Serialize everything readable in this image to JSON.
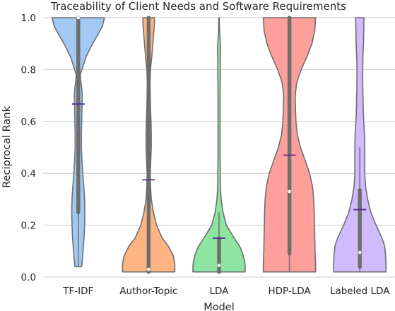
{
  "chart_data": {
    "type": "violin",
    "title": "Traceability of Client Needs and Software Requirements",
    "xlabel": "Model",
    "ylabel": "Reciprocal Rank",
    "ylim": [
      0,
      1.0
    ],
    "yticks": [
      "0.0",
      "0.2",
      "0.4",
      "0.6",
      "0.8",
      "1.0"
    ],
    "grid": true,
    "categories": [
      "TF-IDF",
      "Author-Topic",
      "LDA",
      "HDP-LDA",
      "Labeled LDA"
    ],
    "colors": [
      "#a1c9f4",
      "#ffb482",
      "#8de5a1",
      "#ff9f9b",
      "#d0bbff"
    ],
    "mean_marker_color": "#5b2c8f",
    "violins": [
      {
        "name": "TF-IDF",
        "data_min": 0.04,
        "data_max": 1.0,
        "q1": 0.25,
        "median": 1.0,
        "q3": 1.0,
        "whisker_low": 0.04,
        "whisker_high": 1.0,
        "mean": 0.667,
        "density": [
          [
            0.04,
            0.13
          ],
          [
            0.06,
            0.15
          ],
          [
            0.1,
            0.18
          ],
          [
            0.15,
            0.22
          ],
          [
            0.2,
            0.24
          ],
          [
            0.25,
            0.25
          ],
          [
            0.3,
            0.24
          ],
          [
            0.35,
            0.21
          ],
          [
            0.4,
            0.17
          ],
          [
            0.45,
            0.14
          ],
          [
            0.5,
            0.12
          ],
          [
            0.55,
            0.12
          ],
          [
            0.6,
            0.13
          ],
          [
            0.65,
            0.14
          ],
          [
            0.7,
            0.15
          ],
          [
            0.73,
            0.13
          ],
          [
            0.76,
            0.09
          ],
          [
            0.78,
            0.08
          ],
          [
            0.8,
            0.14
          ],
          [
            0.85,
            0.3
          ],
          [
            0.9,
            0.55
          ],
          [
            0.94,
            0.78
          ],
          [
            0.97,
            0.93
          ],
          [
            1.0,
            1.0
          ]
        ]
      },
      {
        "name": "Author-Topic",
        "data_min": 0.02,
        "data_max": 1.0,
        "q1": 0.02,
        "median": 0.03,
        "q3": 1.0,
        "whisker_low": 0.02,
        "whisker_high": 1.0,
        "mean": 0.375,
        "density": [
          [
            0.02,
            1.0
          ],
          [
            0.05,
            1.0
          ],
          [
            0.08,
            0.95
          ],
          [
            0.12,
            0.75
          ],
          [
            0.15,
            0.52
          ],
          [
            0.2,
            0.3
          ],
          [
            0.25,
            0.18
          ],
          [
            0.3,
            0.1
          ],
          [
            0.35,
            0.07
          ],
          [
            0.4,
            0.06
          ],
          [
            0.45,
            0.08
          ],
          [
            0.5,
            0.1
          ],
          [
            0.55,
            0.1
          ],
          [
            0.6,
            0.09
          ],
          [
            0.65,
            0.07
          ],
          [
            0.7,
            0.06
          ],
          [
            0.75,
            0.05
          ],
          [
            0.8,
            0.07
          ],
          [
            0.85,
            0.12
          ],
          [
            0.9,
            0.16
          ],
          [
            0.95,
            0.2
          ],
          [
            0.98,
            0.22
          ],
          [
            1.0,
            0.22
          ]
        ]
      },
      {
        "name": "LDA",
        "data_min": 0.02,
        "data_max": 1.0,
        "q1": 0.02,
        "median": 0.045,
        "q3": 0.15,
        "whisker_low": 0.02,
        "whisker_high": 0.25,
        "mean": 0.15,
        "density": [
          [
            0.02,
            1.0
          ],
          [
            0.04,
            1.0
          ],
          [
            0.06,
            0.98
          ],
          [
            0.08,
            0.93
          ],
          [
            0.1,
            0.87
          ],
          [
            0.12,
            0.78
          ],
          [
            0.15,
            0.58
          ],
          [
            0.18,
            0.4
          ],
          [
            0.2,
            0.28
          ],
          [
            0.25,
            0.15
          ],
          [
            0.3,
            0.08
          ],
          [
            0.35,
            0.05
          ],
          [
            0.4,
            0.05
          ],
          [
            0.45,
            0.04
          ],
          [
            0.5,
            0.04
          ],
          [
            0.6,
            0.04
          ],
          [
            0.7,
            0.04
          ],
          [
            0.8,
            0.05
          ],
          [
            0.85,
            0.05
          ],
          [
            0.88,
            0.06
          ],
          [
            0.9,
            0.05
          ],
          [
            0.95,
            0.02
          ],
          [
            1.0,
            0.01
          ]
        ]
      },
      {
        "name": "HDP-LDA",
        "data_min": 0.02,
        "data_max": 1.0,
        "q1": 0.09,
        "median": 0.33,
        "q3": 1.0,
        "whisker_low": 0.02,
        "whisker_high": 1.0,
        "mean": 0.47,
        "density": [
          [
            0.02,
            1.0
          ],
          [
            0.05,
            1.0
          ],
          [
            0.1,
            0.98
          ],
          [
            0.15,
            0.97
          ],
          [
            0.2,
            0.96
          ],
          [
            0.25,
            0.95
          ],
          [
            0.3,
            0.93
          ],
          [
            0.35,
            0.88
          ],
          [
            0.4,
            0.77
          ],
          [
            0.45,
            0.6
          ],
          [
            0.5,
            0.42
          ],
          [
            0.55,
            0.3
          ],
          [
            0.6,
            0.25
          ],
          [
            0.65,
            0.23
          ],
          [
            0.7,
            0.22
          ],
          [
            0.75,
            0.28
          ],
          [
            0.8,
            0.45
          ],
          [
            0.85,
            0.67
          ],
          [
            0.9,
            0.86
          ],
          [
            0.95,
            0.97
          ],
          [
            1.0,
            1.0
          ]
        ]
      },
      {
        "name": "Labeled LDA",
        "data_min": 0.02,
        "data_max": 1.0,
        "q1": 0.04,
        "median": 0.095,
        "q3": 0.335,
        "whisker_low": 0.02,
        "whisker_high": 0.5,
        "mean": 0.26,
        "density": [
          [
            0.02,
            1.0
          ],
          [
            0.05,
            1.0
          ],
          [
            0.08,
            0.99
          ],
          [
            0.12,
            0.95
          ],
          [
            0.15,
            0.85
          ],
          [
            0.2,
            0.62
          ],
          [
            0.25,
            0.42
          ],
          [
            0.3,
            0.3
          ],
          [
            0.35,
            0.22
          ],
          [
            0.4,
            0.19
          ],
          [
            0.45,
            0.19
          ],
          [
            0.5,
            0.19
          ],
          [
            0.55,
            0.18
          ],
          [
            0.6,
            0.15
          ],
          [
            0.65,
            0.13
          ],
          [
            0.7,
            0.12
          ],
          [
            0.75,
            0.11
          ],
          [
            0.8,
            0.11
          ],
          [
            0.85,
            0.12
          ],
          [
            0.9,
            0.14
          ],
          [
            0.95,
            0.15
          ],
          [
            1.0,
            0.16
          ]
        ]
      }
    ]
  }
}
